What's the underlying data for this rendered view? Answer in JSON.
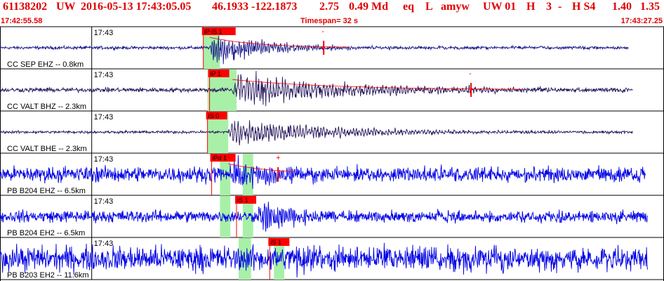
{
  "header": {
    "event_id": "61138202",
    "network": "UW",
    "origin": "2016-05-13 17:43:05.05",
    "location": "46.1933 -122.1873",
    "depth": "2.75",
    "magnitude": "0.49 Md",
    "etype": "eq",
    "flag": "L",
    "author": "amyw",
    "source": "UW 01",
    "quality": "H",
    "qual2": "3",
    "dash": "-",
    "solution": "H S4",
    "val1": "1.40",
    "val2": "1.35"
  },
  "subheader": {
    "start_time": "17:42:55.58",
    "timespan": "Timespan= 32 s",
    "end_time": "17:43:27.25"
  },
  "colors": {
    "header_text": "#e00000",
    "pick": "#ff0000",
    "window": "#a8f0a8",
    "short_period": "#1a1a8c",
    "broadband": "#2a1a5e",
    "borehole": "#0000e6"
  },
  "chart_data": {
    "type": "seismogram",
    "title": "61138202 UW 2016-05-13 17:43:05.05",
    "x_unit": "s",
    "xlim": [
      0,
      32
    ],
    "minute_tick": "17:43",
    "minute_tick_time_s": 4.42,
    "series": [
      {
        "name": "CC SEP EHZ -- 0.8km",
        "color_key": "short_period",
        "data_end_s": 30.3,
        "noise": 0.07,
        "onset_s": 10.1,
        "peak_amp": 1.0,
        "decay_s": 2.6,
        "freq_hz": 10,
        "windows_s": [
          [
            9.8,
            10.6
          ]
        ],
        "picks": [
          {
            "label": "iP iS 1",
            "time_s": 9.8
          },
          {
            "label": "-",
            "time_s": 15.6
          }
        ],
        "coda_end_s": 16.8,
        "spike_s": 15.6
      },
      {
        "name": "CC VALT BHZ -- 2.3km",
        "color_key": "broadband",
        "data_end_s": 30.5,
        "noise": 0.1,
        "onset_s": 11.2,
        "peak_amp": 0.95,
        "decay_s": 5.5,
        "freq_hz": 7,
        "windows_s": [
          [
            10.0,
            10.5
          ],
          [
            10.4,
            11.4
          ]
        ],
        "picks": [
          {
            "label": "iP 1",
            "time_s": 10.1
          },
          {
            "label": "-",
            "time_s": 22.7
          }
        ],
        "coda_end_s": 25.2,
        "spike_s": 22.7
      },
      {
        "name": "CC VALT BHE -- 2.3km",
        "color_key": "broadband",
        "data_end_s": 30.5,
        "noise": 0.06,
        "onset_s": 11.0,
        "peak_amp": 0.75,
        "decay_s": 5.0,
        "freq_hz": 7,
        "windows_s": [
          [
            10.0,
            11.0
          ]
        ],
        "picks": [
          {
            "label": "iS 0",
            "time_s": 10.0
          }
        ],
        "coda_end_s": null,
        "spike_s": null
      },
      {
        "name": "PB B204 EHZ -- 6.5km",
        "color_key": "borehole",
        "data_end_s": 31.1,
        "noise": 0.34,
        "onset_s": 11.0,
        "peak_amp": 0.8,
        "decay_s": 2.5,
        "freq_hz": 11,
        "windows_s": [
          [
            10.6,
            11.1
          ],
          [
            11.7,
            12.2
          ]
        ],
        "picks": [
          {
            "label": "iPd 1",
            "time_s": 10.2
          },
          {
            "label": "+",
            "time_s": 13.4
          }
        ],
        "coda_end_s": 14.2,
        "spike_s": 13.4
      },
      {
        "name": "PB B204 EH2 -- 6.5km",
        "color_key": "borehole",
        "data_end_s": 31.2,
        "noise": 0.26,
        "onset_s": 12.3,
        "peak_amp": 1.0,
        "decay_s": 1.6,
        "freq_hz": 11,
        "windows_s": [
          [
            10.6,
            11.1
          ],
          [
            11.7,
            12.2
          ]
        ],
        "picks": [
          {
            "label": "iS 1",
            "time_s": 11.4
          }
        ],
        "coda_end_s": null,
        "spike_s": null
      },
      {
        "name": "PB B203 EH2 -- 11.6km",
        "color_key": "borehole",
        "data_end_s": 31.2,
        "noise": 0.55,
        "onset_s": 14.0,
        "peak_amp": 0.95,
        "decay_s": 1.2,
        "freq_hz": 12,
        "windows_s": [
          [
            11.5,
            12.1
          ],
          [
            13.2,
            13.7
          ]
        ],
        "picks": [
          {
            "label": "iS 1",
            "time_s": 13.0
          }
        ],
        "coda_end_s": null,
        "spike_s": null
      }
    ]
  }
}
